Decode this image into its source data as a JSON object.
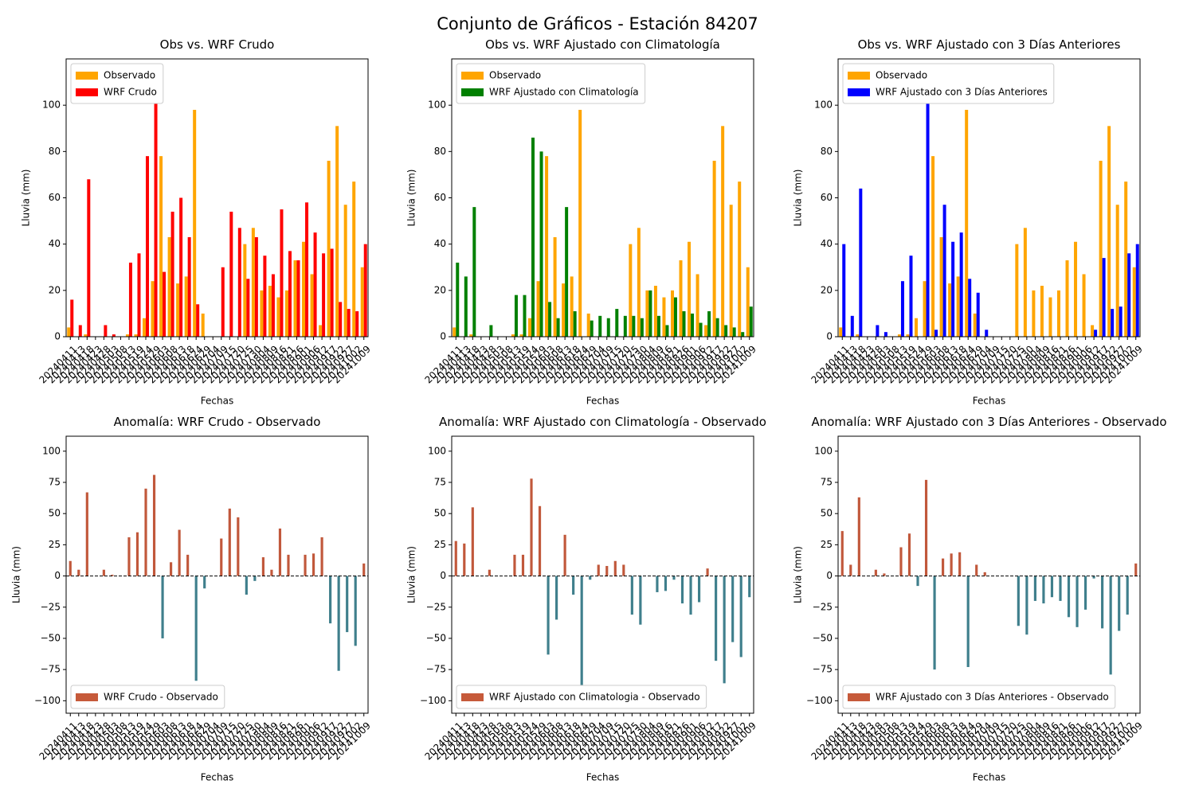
{
  "title": "Conjunto de Gráficos - Estación 84207",
  "categories": [
    "20240411",
    "20240413",
    "20240418",
    "20240423",
    "20240428",
    "20240503",
    "20240508",
    "20240513",
    "20240519",
    "20240524",
    "20240529",
    "20240603",
    "20240608",
    "20240613",
    "20240618",
    "20240624",
    "20240629",
    "20240704",
    "20240709",
    "20240715",
    "20240720",
    "20240725",
    "20240730",
    "20240804",
    "20240809",
    "20240816",
    "20240821",
    "20240826",
    "20240901",
    "20240906",
    "20240912",
    "20240917",
    "20240922",
    "20240927",
    "20241002",
    "20241009"
  ],
  "chart_data": [
    {
      "type": "bar",
      "title": "Obs vs. WRF Crudo",
      "x_label": "Fechas",
      "y_label": "Lluvia (mm)",
      "ylim": [
        0,
        120
      ],
      "yticks": [
        0,
        20,
        40,
        60,
        80,
        100
      ],
      "legend": "upper left",
      "series": [
        {
          "name": "Observado",
          "color": "#ffa500",
          "values": [
            4,
            0,
            1,
            0,
            0,
            0,
            0,
            1,
            1,
            8,
            24,
            78,
            43,
            23,
            26,
            98,
            10,
            0,
            0,
            0,
            0,
            40,
            47,
            20,
            22,
            17,
            20,
            33,
            41,
            27,
            5,
            76,
            91,
            57,
            67,
            30
          ]
        },
        {
          "name": "WRF Crudo",
          "color": "#ff0000",
          "values": [
            16,
            5,
            68,
            0,
            5,
            1,
            0,
            32,
            36,
            78,
            105,
            28,
            54,
            60,
            43,
            14,
            0,
            0,
            30,
            54,
            47,
            25,
            43,
            35,
            27,
            55,
            37,
            33,
            58,
            45,
            36,
            38,
            15,
            12,
            11,
            40
          ]
        }
      ]
    },
    {
      "type": "bar",
      "title": "Obs vs. WRF Ajustado con Climatología",
      "x_label": "Fechas",
      "y_label": "Lluvia (mm)",
      "ylim": [
        0,
        120
      ],
      "yticks": [
        0,
        20,
        40,
        60,
        80,
        100
      ],
      "legend": "upper left",
      "series": [
        {
          "name": "Observado",
          "color": "#ffa500",
          "values": [
            4,
            0,
            1,
            0,
            0,
            0,
            0,
            1,
            1,
            8,
            24,
            78,
            43,
            23,
            26,
            98,
            10,
            0,
            0,
            0,
            0,
            40,
            47,
            20,
            22,
            17,
            20,
            33,
            41,
            27,
            5,
            76,
            91,
            57,
            67,
            30
          ]
        },
        {
          "name": "WRF Ajustado con Climatología",
          "color": "#008000",
          "values": [
            32,
            26,
            56,
            0,
            5,
            0,
            0,
            18,
            18,
            86,
            80,
            15,
            8,
            56,
            11,
            0,
            7,
            9,
            8,
            12,
            9,
            9,
            8,
            20,
            9,
            5,
            17,
            11,
            10,
            6,
            11,
            8,
            5,
            4,
            2,
            13
          ]
        }
      ]
    },
    {
      "type": "bar",
      "title": "Obs vs. WRF Ajustado con 3 Días Anteriores",
      "x_label": "Fechas",
      "y_label": "Lluvia (mm)",
      "ylim": [
        0,
        120
      ],
      "yticks": [
        0,
        20,
        40,
        60,
        80,
        100
      ],
      "legend": "upper left",
      "series": [
        {
          "name": "Observado",
          "color": "#ffa500",
          "values": [
            4,
            0,
            1,
            0,
            0,
            0,
            0,
            1,
            1,
            8,
            24,
            78,
            43,
            23,
            26,
            98,
            10,
            0,
            0,
            0,
            0,
            40,
            47,
            20,
            22,
            17,
            20,
            33,
            41,
            27,
            5,
            76,
            91,
            57,
            67,
            30
          ]
        },
        {
          "name": "WRF Ajustado con 3 Días Anteriores",
          "color": "#0000ff",
          "values": [
            40,
            9,
            64,
            0,
            5,
            2,
            0,
            24,
            35,
            0,
            101,
            3,
            57,
            41,
            45,
            25,
            19,
            3,
            0,
            0,
            0,
            0,
            0,
            0,
            0,
            0,
            0,
            0,
            0,
            0,
            3,
            34,
            12,
            13,
            36,
            40
          ]
        }
      ]
    },
    {
      "type": "anomaly",
      "title": "Anomalía: WRF Crudo - Observado",
      "x_label": "Fechas",
      "y_label": "Lluvia (mm)",
      "ylim": [
        -110,
        112
      ],
      "yticks": [
        {
          "value": -100,
          "label": "−100"
        },
        {
          "value": -75,
          "label": "−75"
        },
        {
          "value": -50,
          "label": "−50"
        },
        {
          "value": -25,
          "label": "−25"
        },
        0,
        25,
        50,
        75,
        100
      ],
      "legend": "lower left",
      "positive_color": "#c1583b",
      "negative_color": "#3f7f8c",
      "series": [
        {
          "name": "WRF Crudo - Observado",
          "color": "#c65a3a",
          "values": [
            12,
            5,
            67,
            0,
            5,
            1,
            0,
            31,
            35,
            70,
            81,
            -50,
            11,
            37,
            17,
            -84,
            -10,
            0,
            30,
            54,
            47,
            -15,
            -4,
            15,
            5,
            38,
            17,
            0,
            17,
            18,
            31,
            -38,
            -76,
            -45,
            -56,
            10
          ]
        }
      ]
    },
    {
      "type": "anomaly",
      "title": "Anomalía: WRF Ajustado con Climatología - Observado",
      "x_label": "Fechas",
      "y_label": "Lluvia (mm)",
      "ylim": [
        -110,
        112
      ],
      "yticks": [
        {
          "value": -100,
          "label": "−100"
        },
        {
          "value": -75,
          "label": "−75"
        },
        {
          "value": -50,
          "label": "−50"
        },
        {
          "value": -25,
          "label": "−25"
        },
        0,
        25,
        50,
        75,
        100
      ],
      "legend": "lower left",
      "positive_color": "#c1583b",
      "negative_color": "#3f7f8c",
      "series": [
        {
          "name": "WRF Ajustado con Climatologia - Observado",
          "color": "#c65a3a",
          "values": [
            28,
            26,
            55,
            0,
            5,
            0,
            0,
            17,
            17,
            78,
            56,
            -63,
            -35,
            33,
            -15,
            -98,
            -3,
            9,
            8,
            12,
            9,
            -31,
            -39,
            0,
            -13,
            -12,
            -3,
            -22,
            -31,
            -21,
            6,
            -68,
            -86,
            -53,
            -65,
            -17
          ]
        }
      ]
    },
    {
      "type": "anomaly",
      "title": "Anomalía: WRF Ajustado con 3 Días Anteriores - Observado",
      "x_label": "Fechas",
      "y_label": "Lluvia (mm)",
      "ylim": [
        -110,
        112
      ],
      "yticks": [
        {
          "value": -100,
          "label": "−100"
        },
        {
          "value": -75,
          "label": "−75"
        },
        {
          "value": -50,
          "label": "−50"
        },
        {
          "value": -25,
          "label": "−25"
        },
        0,
        25,
        50,
        75,
        100
      ],
      "legend": "lower left",
      "positive_color": "#c1583b",
      "negative_color": "#3f7f8c",
      "series": [
        {
          "name": "WRF Ajustado con 3 Días Anteriores - Observado",
          "color": "#c65a3a",
          "values": [
            36,
            9,
            63,
            0,
            5,
            2,
            0,
            23,
            34,
            -8,
            77,
            -75,
            14,
            18,
            19,
            -73,
            9,
            3,
            0,
            0,
            0,
            -40,
            -47,
            -20,
            -22,
            -17,
            -20,
            -33,
            -41,
            -27,
            -2,
            -42,
            -79,
            -44,
            -31,
            10
          ]
        }
      ]
    }
  ]
}
